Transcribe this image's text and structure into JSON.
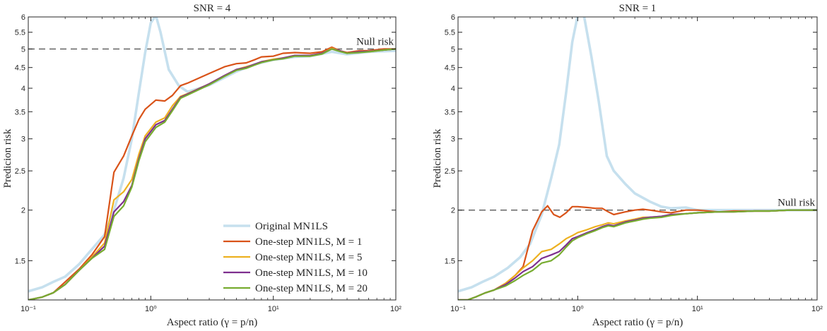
{
  "chart_data": [
    {
      "type": "line",
      "title": "SNR = 4",
      "xlabel": "Aspect ratio (γ = p/n)",
      "ylabel": "Predicion risk",
      "xscale": "log",
      "yscale": "log",
      "xlim": [
        0.1,
        100
      ],
      "ylim": [
        1.2,
        6
      ],
      "xticks": [
        0.1,
        1,
        10,
        100
      ],
      "xtick_labels": [
        "10⁻¹",
        "10⁰",
        "10¹",
        "10²"
      ],
      "yticks": [
        1.5,
        2,
        2.5,
        3,
        3.5,
        4,
        4.5,
        5,
        5.5,
        6
      ],
      "ytick_labels": [
        "1.5",
        "2",
        "2.5",
        "3",
        "3.5",
        "4",
        "4.5",
        "5",
        "5.5",
        "6"
      ],
      "null_risk": {
        "value": 5,
        "label": "Null risk"
      },
      "legend": "bottom-right",
      "series": [
        {
          "name": "Original MN1LS",
          "color": "#c6e0ee",
          "x": [
            0.1,
            0.13,
            0.16,
            0.2,
            0.26,
            0.33,
            0.42,
            0.5,
            0.6,
            0.7,
            0.8,
            0.9,
            1.0,
            1.1,
            1.2,
            1.4,
            1.7,
            2,
            3,
            4,
            5,
            7,
            10,
            15,
            20,
            30,
            40,
            60,
            100
          ],
          "y": [
            1.26,
            1.29,
            1.33,
            1.37,
            1.47,
            1.6,
            1.74,
            2.0,
            2.4,
            3.0,
            3.9,
            4.9,
            5.8,
            6.05,
            5.5,
            4.45,
            4.05,
            3.92,
            4.07,
            4.25,
            4.4,
            4.58,
            4.7,
            4.78,
            4.8,
            4.92,
            4.85,
            4.92,
            4.95
          ]
        },
        {
          "name": "One-step MN1LS, M = 1",
          "color": "#d95319",
          "x": [
            0.1,
            0.13,
            0.16,
            0.2,
            0.26,
            0.33,
            0.42,
            0.5,
            0.6,
            0.7,
            0.8,
            0.9,
            1.1,
            1.3,
            1.5,
            1.75,
            2,
            3,
            4,
            5,
            6,
            7,
            8,
            10,
            12,
            15,
            20,
            25,
            30,
            35,
            40,
            50,
            60,
            80,
            100
          ],
          "y": [
            1.2,
            1.22,
            1.25,
            1.33,
            1.43,
            1.55,
            1.72,
            2.48,
            2.72,
            3.05,
            3.35,
            3.55,
            3.74,
            3.72,
            3.84,
            4.06,
            4.12,
            4.35,
            4.52,
            4.6,
            4.62,
            4.7,
            4.78,
            4.8,
            4.88,
            4.9,
            4.88,
            4.92,
            5.05,
            4.95,
            4.9,
            4.95,
            4.95,
            5.0,
            5.0
          ]
        },
        {
          "name": "One-step MN1LS, M = 5",
          "color": "#edb120",
          "x": [
            0.1,
            0.13,
            0.16,
            0.2,
            0.26,
            0.33,
            0.42,
            0.5,
            0.6,
            0.7,
            0.8,
            0.9,
            1.1,
            1.3,
            1.5,
            1.75,
            2,
            3,
            4,
            5,
            6,
            7,
            8,
            10,
            12,
            15,
            20,
            25,
            30,
            35,
            40,
            50,
            60,
            80,
            100
          ],
          "y": [
            1.2,
            1.22,
            1.25,
            1.31,
            1.42,
            1.53,
            1.66,
            2.12,
            2.22,
            2.38,
            2.75,
            3.05,
            3.3,
            3.38,
            3.62,
            3.82,
            3.88,
            4.1,
            4.3,
            4.45,
            4.52,
            4.58,
            4.65,
            4.72,
            4.75,
            4.82,
            4.82,
            4.88,
            5.02,
            4.95,
            4.88,
            4.92,
            4.92,
            4.97,
            5.0
          ]
        },
        {
          "name": "One-step MN1LS, M = 10",
          "color": "#7e2f8e",
          "x": [
            0.1,
            0.13,
            0.16,
            0.2,
            0.26,
            0.33,
            0.42,
            0.5,
            0.6,
            0.7,
            0.8,
            0.9,
            1.1,
            1.3,
            1.5,
            1.75,
            2,
            3,
            4,
            5,
            6,
            7,
            8,
            10,
            12,
            15,
            20,
            25,
            30,
            35,
            40,
            50,
            60,
            80,
            100
          ],
          "y": [
            1.2,
            1.22,
            1.25,
            1.31,
            1.42,
            1.52,
            1.63,
            1.98,
            2.1,
            2.3,
            2.68,
            3.0,
            3.25,
            3.33,
            3.55,
            3.8,
            3.87,
            4.1,
            4.3,
            4.45,
            4.5,
            4.58,
            4.65,
            4.7,
            4.75,
            4.82,
            4.82,
            4.88,
            5.0,
            4.95,
            4.88,
            4.92,
            4.93,
            4.97,
            5.0
          ]
        },
        {
          "name": "One-step MN1LS, M = 20",
          "color": "#77ac30",
          "x": [
            0.1,
            0.13,
            0.16,
            0.2,
            0.26,
            0.33,
            0.42,
            0.5,
            0.6,
            0.7,
            0.8,
            0.9,
            1.1,
            1.3,
            1.5,
            1.75,
            2,
            3,
            4,
            5,
            6,
            7,
            8,
            10,
            12,
            15,
            20,
            25,
            30,
            35,
            40,
            50,
            60,
            80,
            100
          ],
          "y": [
            1.2,
            1.22,
            1.25,
            1.31,
            1.42,
            1.52,
            1.6,
            1.93,
            2.05,
            2.28,
            2.65,
            2.95,
            3.2,
            3.3,
            3.52,
            3.78,
            3.85,
            4.08,
            4.28,
            4.43,
            4.48,
            4.56,
            4.63,
            4.7,
            4.73,
            4.8,
            4.8,
            4.86,
            5.0,
            4.93,
            4.88,
            4.9,
            4.92,
            4.97,
            5.0
          ]
        }
      ]
    },
    {
      "type": "line",
      "title": "SNR = 1",
      "xlabel": "Aspect ratio (γ = p/n)",
      "ylabel": "Predicion risk",
      "xscale": "log",
      "yscale": "log",
      "xlim": [
        0.1,
        100
      ],
      "ylim": [
        1.2,
        6
      ],
      "xticks": [
        0.1,
        1,
        10,
        100
      ],
      "xtick_labels": [
        "10⁻¹",
        "10⁰",
        "10¹",
        "10²"
      ],
      "yticks": [
        1.5,
        2,
        2.5,
        3,
        3.5,
        4,
        4.5,
        5,
        5.5,
        6
      ],
      "ytick_labels": [
        "1.5",
        "2",
        "2.5",
        "3",
        "3.5",
        "4",
        "4.5",
        "5",
        "5.5",
        "6"
      ],
      "null_risk": {
        "value": 2,
        "label": "Null risk"
      },
      "series": [
        {
          "name": "Original MN1LS",
          "color": "#c6e0ee",
          "x": [
            0.1,
            0.13,
            0.16,
            0.2,
            0.26,
            0.33,
            0.4,
            0.5,
            0.6,
            0.7,
            0.8,
            0.9,
            1.0,
            1.1,
            1.3,
            1.5,
            1.75,
            2,
            2.5,
            3,
            4,
            5,
            6,
            8,
            10,
            15,
            20,
            30,
            40,
            60,
            100
          ],
          "y": [
            1.26,
            1.29,
            1.33,
            1.37,
            1.44,
            1.53,
            1.65,
            1.95,
            2.4,
            2.9,
            3.9,
            5.2,
            6.05,
            6.3,
            4.8,
            3.7,
            2.72,
            2.5,
            2.32,
            2.2,
            2.1,
            2.04,
            2.02,
            2.03,
            2.0,
            2.0,
            2.0,
            2.0,
            2.0,
            2.0,
            2.0
          ]
        },
        {
          "name": "One-step MN1LS, M = 1",
          "color": "#d95319",
          "x": [
            0.1,
            0.12,
            0.14,
            0.17,
            0.2,
            0.25,
            0.3,
            0.35,
            0.42,
            0.5,
            0.56,
            0.63,
            0.71,
            0.8,
            0.9,
            1.0,
            1.2,
            1.4,
            1.6,
            1.8,
            2.0,
            2.5,
            3,
            3.5,
            4,
            5,
            6,
            8,
            10,
            15,
            20,
            30,
            40,
            60,
            100
          ],
          "y": [
            1.2,
            1.2,
            1.22,
            1.25,
            1.27,
            1.32,
            1.38,
            1.45,
            1.78,
            1.98,
            2.05,
            1.95,
            1.92,
            1.97,
            2.04,
            2.04,
            2.03,
            2.02,
            2.02,
            1.98,
            1.95,
            1.98,
            2.0,
            2.01,
            2.0,
            1.98,
            1.97,
            2.0,
            2.0,
            1.98,
            1.99,
            1.99,
            1.99,
            2.0,
            2.0
          ]
        },
        {
          "name": "One-step MN1LS, M = 5",
          "color": "#edb120",
          "x": [
            0.1,
            0.12,
            0.14,
            0.17,
            0.2,
            0.25,
            0.3,
            0.35,
            0.42,
            0.5,
            0.6,
            0.7,
            0.8,
            0.9,
            1.0,
            1.2,
            1.4,
            1.6,
            1.8,
            2.0,
            2.5,
            3,
            3.5,
            4,
            5,
            6,
            8,
            10,
            15,
            20,
            30,
            40,
            60,
            100
          ],
          "y": [
            1.2,
            1.2,
            1.22,
            1.25,
            1.27,
            1.32,
            1.38,
            1.44,
            1.5,
            1.58,
            1.6,
            1.65,
            1.7,
            1.73,
            1.76,
            1.79,
            1.82,
            1.84,
            1.86,
            1.85,
            1.88,
            1.9,
            1.92,
            1.92,
            1.93,
            1.95,
            1.96,
            1.97,
            1.98,
            1.98,
            1.99,
            1.99,
            2.0,
            2.0
          ]
        },
        {
          "name": "One-step MN1LS, M = 10",
          "color": "#7e2f8e",
          "x": [
            0.1,
            0.12,
            0.14,
            0.17,
            0.2,
            0.25,
            0.3,
            0.35,
            0.42,
            0.5,
            0.6,
            0.7,
            0.8,
            0.9,
            1.0,
            1.2,
            1.4,
            1.6,
            1.8,
            2.0,
            2.5,
            3,
            3.5,
            4,
            5,
            6,
            8,
            10,
            15,
            20,
            30,
            40,
            60,
            100
          ],
          "y": [
            1.2,
            1.2,
            1.22,
            1.25,
            1.27,
            1.31,
            1.36,
            1.41,
            1.45,
            1.52,
            1.55,
            1.58,
            1.64,
            1.7,
            1.72,
            1.76,
            1.79,
            1.82,
            1.84,
            1.83,
            1.87,
            1.89,
            1.91,
            1.92,
            1.93,
            1.95,
            1.96,
            1.97,
            1.98,
            1.98,
            1.99,
            1.99,
            2.0,
            2.0
          ]
        },
        {
          "name": "One-step MN1LS, M = 20",
          "color": "#77ac30",
          "x": [
            0.1,
            0.12,
            0.14,
            0.17,
            0.2,
            0.25,
            0.3,
            0.35,
            0.42,
            0.5,
            0.6,
            0.7,
            0.8,
            0.9,
            1.0,
            1.2,
            1.4,
            1.6,
            1.8,
            2.0,
            2.5,
            3,
            3.5,
            4,
            5,
            6,
            8,
            10,
            15,
            20,
            30,
            40,
            60,
            100
          ],
          "y": [
            1.2,
            1.2,
            1.22,
            1.25,
            1.27,
            1.3,
            1.34,
            1.38,
            1.42,
            1.48,
            1.5,
            1.55,
            1.62,
            1.68,
            1.71,
            1.75,
            1.78,
            1.81,
            1.83,
            1.82,
            1.86,
            1.88,
            1.9,
            1.91,
            1.92,
            1.94,
            1.96,
            1.97,
            1.98,
            1.98,
            1.99,
            1.99,
            2.0,
            2.0
          ]
        }
      ]
    }
  ]
}
